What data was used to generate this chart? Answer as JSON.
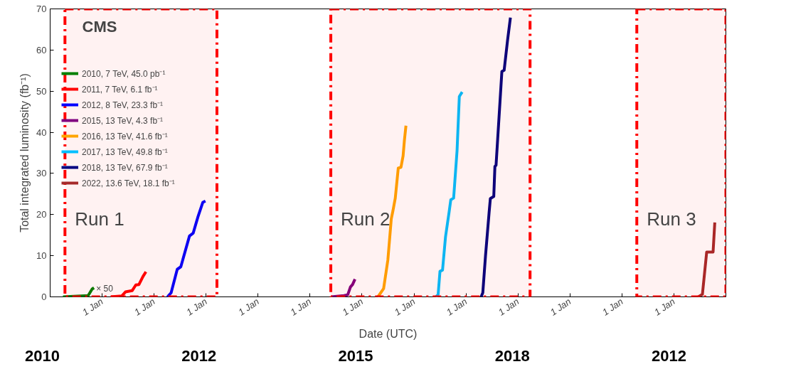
{
  "chart_data": {
    "type": "line",
    "xlabel": "Date (UTC)",
    "ylabel": "Total integrated luminosity (fb⁻¹)",
    "xlim": [
      "2010-01-01",
      "2023-01-01"
    ],
    "xticks": [
      {
        "value": "2011-01-01",
        "label": "1 Jan"
      },
      {
        "value": "2012-01-01",
        "label": "1 Jan"
      },
      {
        "value": "2013-01-01",
        "label": "1 Jan"
      },
      {
        "value": "2014-01-01",
        "label": "1 Jan"
      },
      {
        "value": "2015-01-01",
        "label": "1 Jan"
      },
      {
        "value": "2016-01-01",
        "label": "1 Jan"
      },
      {
        "value": "2017-01-01",
        "label": "1 Jan"
      },
      {
        "value": "2018-01-01",
        "label": "1 Jan"
      },
      {
        "value": "2019-01-01",
        "label": "1 Jan"
      },
      {
        "value": "2020-01-01",
        "label": "1 Jan"
      },
      {
        "value": "2021-01-01",
        "label": "1 Jan"
      },
      {
        "value": "2022-01-01",
        "label": "1 Jan"
      }
    ],
    "ylim": [
      0,
      70
    ],
    "yticks": [
      0,
      10,
      20,
      30,
      40,
      50,
      60,
      70
    ],
    "grid": false,
    "legend": "top left",
    "line_style": "solid",
    "marker": "none",
    "series": [
      {
        "name": "2010, 7 TeV, 45.0 pb⁻¹",
        "color": "#008000",
        "x": [
          "2010-04-01",
          "2010-09-25",
          "2010-10-23",
          "2010-11-05"
        ],
        "values": [
          0,
          0.3,
          1.9,
          2.2
        ]
      },
      {
        "name": "2011, 7 TeV, 6.1 fb⁻¹",
        "color": "#ff0000",
        "x": [
          "2011-03-03",
          "2011-05-19",
          "2011-06-14",
          "2011-07-31",
          "2011-08-26",
          "2011-09-17",
          "2011-10-16",
          "2011-11-05"
        ],
        "values": [
          0,
          0.2,
          1.2,
          1.5,
          2.9,
          3.0,
          5.0,
          6.1
        ]
      },
      {
        "name": "2012, 8 TeV, 23.3 fb⁻¹",
        "color": "#0000ff",
        "x": [
          "2012-04-04",
          "2012-04-30",
          "2012-06-12",
          "2012-07-07",
          "2012-09-06",
          "2012-10-02",
          "2012-11-05",
          "2012-12-09",
          "2012-12-27"
        ],
        "values": [
          0,
          1.0,
          6.7,
          7.3,
          14.8,
          15.5,
          19.5,
          23.0,
          23.3
        ]
      },
      {
        "name": "2015, 13 TeV, 4.3 fb⁻¹",
        "color": "#800080",
        "x": [
          "2015-05-30",
          "2015-08-28",
          "2015-09-23",
          "2015-10-12",
          "2015-10-27",
          "2015-11-13"
        ],
        "values": [
          0,
          0.3,
          0.5,
          2.4,
          3.0,
          4.3
        ]
      },
      {
        "name": "2016, 13 TeV, 41.6 fb⁻¹",
        "color": "#ffa500",
        "x": [
          "2016-04-22",
          "2016-06-01",
          "2016-07-01",
          "2016-07-25",
          "2016-08-06",
          "2016-08-22",
          "2016-09-12",
          "2016-10-01",
          "2016-10-16",
          "2016-10-25",
          "2016-11-05"
        ],
        "values": [
          0,
          2.0,
          9,
          19,
          21,
          24,
          31.3,
          31.5,
          34.3,
          38,
          41.6
        ]
      },
      {
        "name": "2017, 13 TeV, 49.8 fb⁻¹",
        "color": "#00bfff",
        "x": [
          "2017-06-03",
          "2017-06-19",
          "2017-07-02",
          "2017-07-20",
          "2017-08-10",
          "2017-09-05",
          "2017-09-16",
          "2017-10-06",
          "2017-10-30",
          "2017-11-15",
          "2017-12-05"
        ],
        "values": [
          0,
          0.5,
          6.2,
          6.5,
          14.6,
          20.8,
          23.6,
          24,
          35.5,
          48.7,
          49.8
        ]
      },
      {
        "name": "2018, 13 TeV, 67.9 fb⁻¹",
        "color": "#000080",
        "x": [
          "2018-04-17",
          "2018-04-29",
          "2018-05-18",
          "2018-06-12",
          "2018-06-21",
          "2018-07-15",
          "2018-07-23",
          "2018-07-31",
          "2018-09-10",
          "2018-09-26",
          "2018-10-20",
          "2018-11-09"
        ],
        "values": [
          0,
          1,
          10,
          20.4,
          23.9,
          24.4,
          31.7,
          32,
          54.8,
          55.1,
          62.4,
          67.9
        ]
      },
      {
        "name": "2022, 13.6 TeV, 18.1 fb⁻¹",
        "color": "#a52a2a",
        "x": [
          "2022-06-21",
          "2022-07-20",
          "2022-08-19",
          "2022-10-03",
          "2022-10-15"
        ],
        "values": [
          0,
          0.6,
          10.9,
          10.9,
          18.1
        ]
      }
    ],
    "bands": [
      {
        "axis": "x",
        "from": "2010-04-15",
        "to": "2013-03-18",
        "label": "Run 1",
        "color": "#ff0000"
      },
      {
        "axis": "x",
        "from": "2015-05-27",
        "to": "2019-03-27",
        "label": "Run 2",
        "color": "#ff0000"
      },
      {
        "axis": "x",
        "from": "2021-04-15",
        "to": "2023-01-01",
        "label": "Run 3",
        "color": "#ff0000"
      }
    ],
    "annotations": [
      "CMS",
      {
        "text": "× 50",
        "x": "2010-11-20",
        "y": 2.0
      },
      "2010",
      "2012",
      "2015",
      "2018",
      "2012"
    ]
  }
}
